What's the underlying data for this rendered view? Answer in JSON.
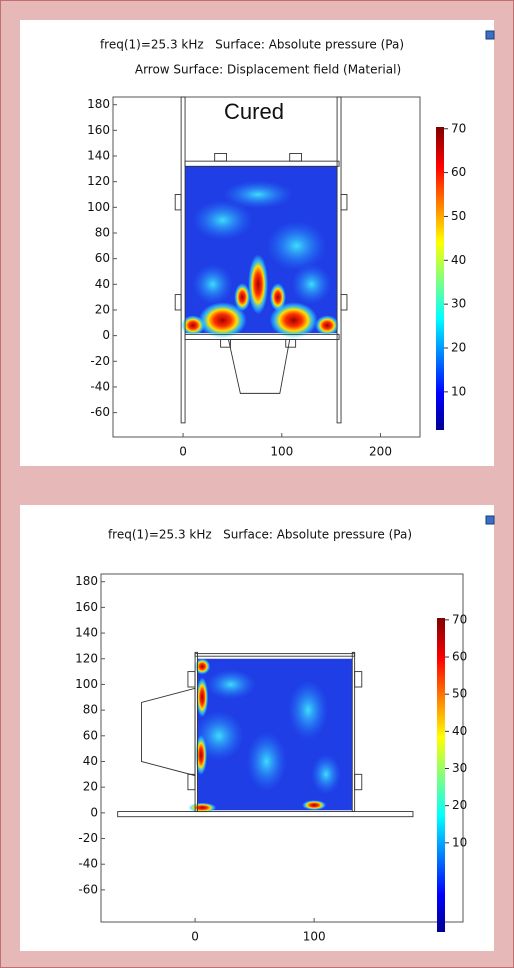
{
  "chart_data": [
    {
      "type": "heatmap",
      "title": "freq(1)=25.3 kHz   Surface: Absolute pressure (Pa)",
      "subtitle": "Arrow Surface: Displacement field (Material)",
      "annotation": "Cured",
      "xlim": [
        -71,
        240
      ],
      "ylim": [
        -79,
        186
      ],
      "xticks": [
        0,
        100,
        200
      ],
      "yticks": [
        180,
        160,
        140,
        120,
        100,
        80,
        60,
        40,
        20,
        0,
        -20,
        -40,
        -60
      ],
      "colorbar": {
        "lim": [
          1.3,
          70.4
        ],
        "ticks": [
          70,
          60,
          50,
          40,
          30,
          20,
          10
        ]
      }
    },
    {
      "type": "heatmap",
      "title": "freq(1)=25.3 kHz   Surface: Absolute pressure (Pa)",
      "xlim": [
        -79,
        225
      ],
      "ylim": [
        -85,
        186
      ],
      "xticks": [
        0,
        100
      ],
      "yticks": [
        180,
        160,
        140,
        120,
        100,
        80,
        60,
        40,
        20,
        0,
        -20,
        -40,
        -60
      ],
      "colorbar": {
        "lim": [
          -14,
          70.5
        ],
        "ticks": [
          70,
          60,
          50,
          40,
          30,
          20,
          10
        ]
      }
    }
  ]
}
